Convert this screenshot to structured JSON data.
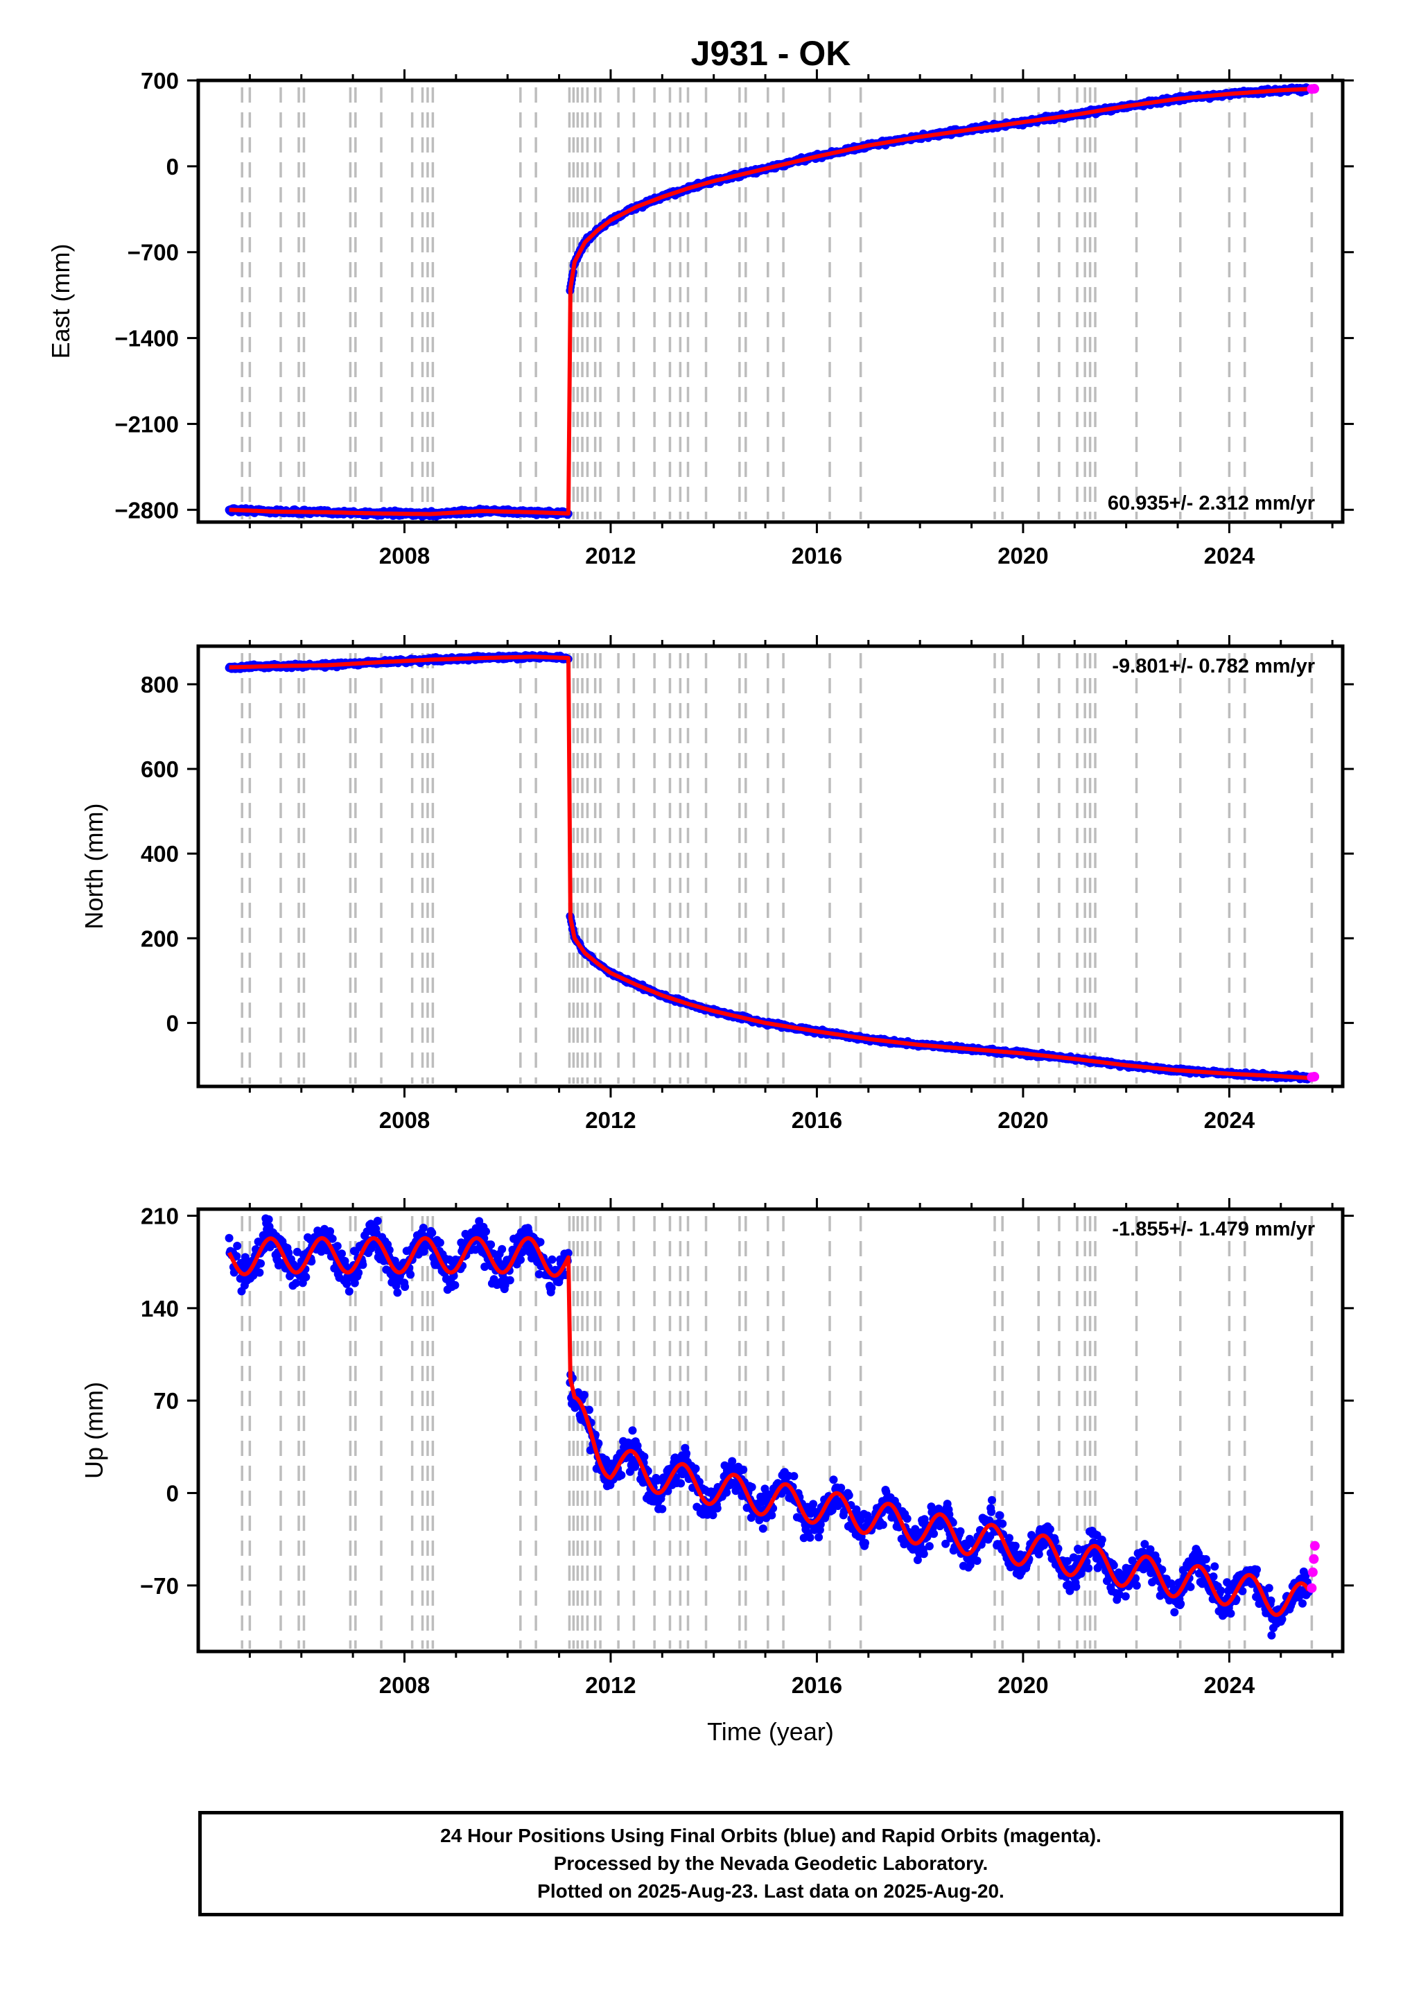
{
  "chart_title": "J931 - OK",
  "chart_data": [
    {
      "type": "scatter",
      "ylabel": "East (mm)",
      "xlim": [
        2004.0,
        2026.2
      ],
      "ylim": [
        -2900,
        700
      ],
      "x_ticks": [
        2008,
        2012,
        2016,
        2020,
        2024
      ],
      "y_ticks": [
        700,
        0,
        -700,
        -1400,
        -2100,
        -2800
      ],
      "rate_label": "60.935+/- 2.312 mm/yr",
      "rate_position": "bottom-right",
      "series": [
        {
          "color": "#0000ff",
          "x": [
            2004.6,
            2005.5,
            2006.5,
            2007.5,
            2008.5,
            2009.5,
            2010.5,
            2011.18,
            2011.2,
            2011.3,
            2011.5,
            2011.75,
            2012.0,
            2012.5,
            2013.0,
            2013.5,
            2014.0,
            2015.0,
            2016.0,
            2017.0,
            2018.0,
            2019.0,
            2020.0,
            2021.0,
            2022.0,
            2023.0,
            2024.0,
            2025.0,
            2025.55
          ],
          "y": [
            -2800,
            -2815,
            -2820,
            -2830,
            -2835,
            -2810,
            -2820,
            -2830,
            -1050,
            -780,
            -620,
            -520,
            -440,
            -330,
            -250,
            -180,
            -120,
            -20,
            80,
            170,
            240,
            300,
            360,
            420,
            490,
            550,
            590,
            620,
            630
          ]
        },
        {
          "color": "#ff00ff",
          "x": [
            2025.6,
            2025.65
          ],
          "y": [
            630,
            632
          ]
        }
      ]
    },
    {
      "type": "scatter",
      "ylabel": "North (mm)",
      "xlim": [
        2004.0,
        2026.2
      ],
      "ylim": [
        -150,
        890
      ],
      "x_ticks": [
        2008,
        2012,
        2016,
        2020,
        2024
      ],
      "y_ticks": [
        800,
        600,
        400,
        200,
        0
      ],
      "rate_label": "-9.801+/- 0.782 mm/yr",
      "rate_position": "top-right",
      "series": [
        {
          "color": "#0000ff",
          "x": [
            2004.6,
            2005.5,
            2006.5,
            2007.5,
            2008.5,
            2009.5,
            2010.5,
            2011.18,
            2011.2,
            2011.3,
            2011.5,
            2011.75,
            2012.0,
            2012.5,
            2013.0,
            2013.5,
            2014.0,
            2015.0,
            2016.0,
            2017.0,
            2018.0,
            2019.0,
            2020.0,
            2021.0,
            2022.0,
            2023.0,
            2024.0,
            2025.0,
            2025.55
          ],
          "y": [
            840,
            843,
            845,
            852,
            858,
            862,
            865,
            862,
            260,
            200,
            165,
            140,
            118,
            90,
            65,
            45,
            28,
            0,
            -20,
            -38,
            -52,
            -62,
            -72,
            -85,
            -100,
            -112,
            -120,
            -126,
            -130
          ]
        },
        {
          "color": "#ff00ff",
          "x": [
            2025.6,
            2025.65
          ],
          "y": [
            -128,
            -127
          ]
        }
      ]
    },
    {
      "type": "scatter",
      "ylabel": "Up (mm)",
      "xlabel": "Time (year)",
      "xlim": [
        2004.0,
        2026.2
      ],
      "ylim": [
        -120,
        215
      ],
      "x_ticks": [
        2008,
        2012,
        2016,
        2020,
        2024
      ],
      "y_ticks": [
        210,
        140,
        70,
        0,
        -70
      ],
      "rate_label": "-1.855+/- 1.479 mm/yr",
      "rate_position": "top-right",
      "series": [
        {
          "color": "#0000ff",
          "x": [
            2004.6,
            2005.5,
            2006.5,
            2007.5,
            2008.5,
            2009.5,
            2010.5,
            2011.18,
            2011.2,
            2011.3,
            2011.5,
            2011.75,
            2012.0,
            2012.5,
            2013.0,
            2013.5,
            2014.0,
            2015.0,
            2016.0,
            2017.0,
            2018.0,
            2019.0,
            2020.0,
            2021.0,
            2022.0,
            2023.0,
            2024.0,
            2025.0,
            2025.55
          ],
          "y": [
            178,
            180,
            180,
            180,
            180,
            180,
            180,
            176,
            85,
            62,
            50,
            35,
            22,
            18,
            12,
            8,
            4,
            -4,
            -10,
            -18,
            -26,
            -34,
            -42,
            -50,
            -58,
            -66,
            -72,
            -80,
            -82
          ]
        },
        {
          "color": "#ff00ff",
          "x": [
            2025.6,
            2025.62,
            2025.64,
            2025.66
          ],
          "y": [
            -72,
            -60,
            -50,
            -40
          ]
        }
      ]
    }
  ],
  "caption_lines": [
    "24 Hour Positions Using Final Orbits (blue) and Rapid Orbits (magenta).",
    "Processed by the Nevada Geodetic Laboratory.",
    "Plotted on 2025-Aug-23. Last data on 2025-Aug-20."
  ],
  "equipment_change_epochs": [
    2004.85,
    2005.0,
    2005.6,
    2005.95,
    2006.05,
    2006.95,
    2007.05,
    2007.55,
    2008.15,
    2008.35,
    2008.45,
    2008.55,
    2010.25,
    2010.55,
    2011.2,
    2011.28,
    2011.36,
    2011.45,
    2011.55,
    2011.7,
    2011.8,
    2012.15,
    2012.45,
    2012.85,
    2013.15,
    2013.35,
    2013.5,
    2013.85,
    2014.5,
    2014.62,
    2015.05,
    2015.35,
    2016.25,
    2016.85,
    2019.45,
    2019.6,
    2020.3,
    2020.7,
    2021.05,
    2021.2,
    2021.3,
    2021.4,
    2022.2,
    2023.05,
    2024.0,
    2024.3,
    2025.6
  ]
}
